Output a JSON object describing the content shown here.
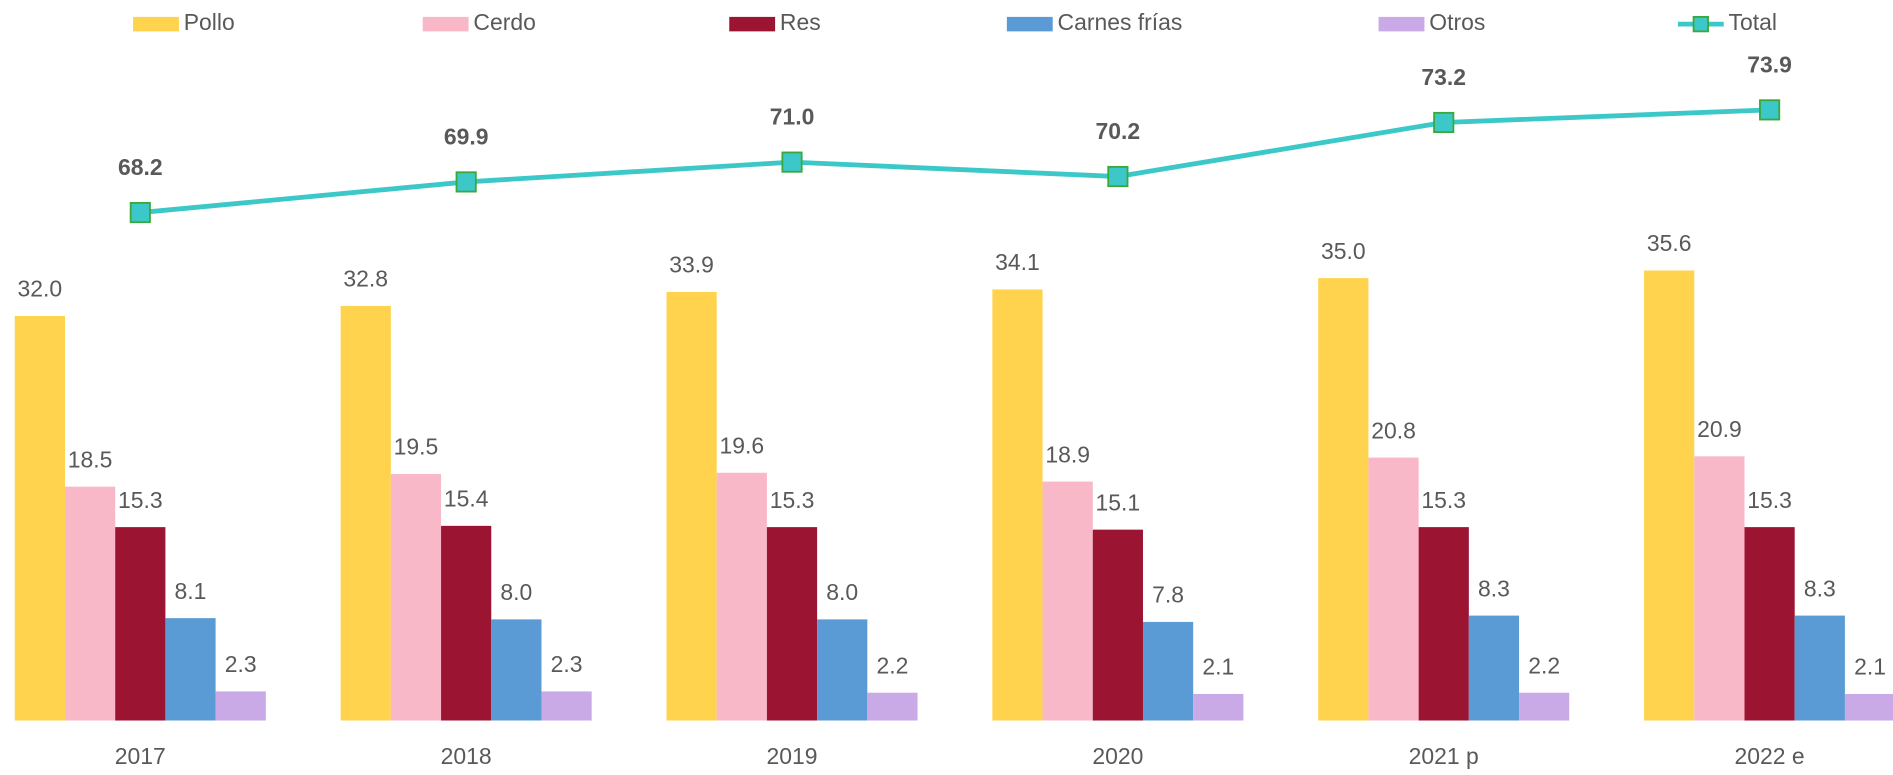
{
  "chart_data": {
    "type": "bar",
    "categories": [
      "2017",
      "2018",
      "2019",
      "2020",
      "2021 p",
      "2022 e"
    ],
    "ylim": [
      0,
      57
    ],
    "y2lim": [
      40,
      80
    ],
    "legend": "top",
    "series": [
      {
        "name": "Pollo",
        "color": "#ffd34d",
        "values": [
          32.0,
          32.8,
          33.9,
          34.1,
          35.0,
          35.6
        ],
        "value_labels": [
          "32.0",
          "32.8",
          "33.9",
          "34.1",
          "35.0",
          "35.6"
        ]
      },
      {
        "name": "Cerdo",
        "color": "#f9b8c8",
        "values": [
          18.5,
          19.5,
          19.6,
          18.9,
          20.8,
          20.9
        ],
        "value_labels": [
          "18.5",
          "19.5",
          "19.6",
          "18.9",
          "20.8",
          "20.9"
        ]
      },
      {
        "name": "Res",
        "color": "#9b1533",
        "values": [
          15.3,
          15.4,
          15.3,
          15.1,
          15.3,
          15.3
        ],
        "value_labels": [
          "15.3",
          "15.4",
          "15.3",
          "15.1",
          "15.3",
          "15.3"
        ]
      },
      {
        "name": "Carnes frías",
        "color": "#5b9bd5",
        "values": [
          8.1,
          8.0,
          8.0,
          7.8,
          8.3,
          8.3
        ],
        "value_labels": [
          "8.1",
          "8.0",
          "8.0",
          "7.8",
          "8.3",
          "8.3"
        ]
      },
      {
        "name": "Otros",
        "color": "#c9a9e6",
        "values": [
          2.3,
          2.3,
          2.2,
          2.1,
          2.2,
          2.1
        ],
        "value_labels": [
          "2.3",
          "2.3",
          "2.2",
          "2.1",
          "2.2",
          "2.1"
        ]
      },
      {
        "name": "Total",
        "type": "line",
        "axis": "y2",
        "color": "#3cc8c8",
        "values": [
          68.2,
          69.9,
          71.0,
          70.2,
          73.2,
          73.9
        ],
        "value_labels": [
          "68.2",
          "69.9",
          "71.0",
          "70.2",
          "73.2",
          "73.9"
        ]
      }
    ]
  }
}
